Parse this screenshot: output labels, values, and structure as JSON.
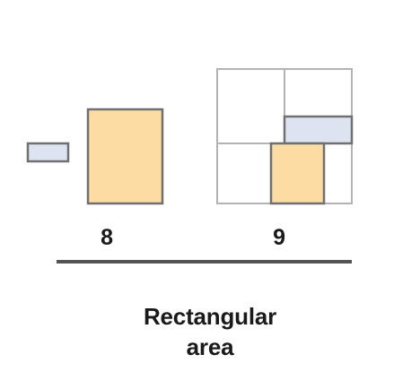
{
  "figures": [
    {
      "number": "8"
    },
    {
      "number": "9"
    }
  ],
  "caption": {
    "line1": "Rectangular",
    "line2": "area"
  },
  "colors": {
    "orange_fill": "#fddca3",
    "blue_fill": "#dde3f0",
    "shape_stroke": "#707070",
    "grid_stroke": "#b3b3b3",
    "divider": "#555555"
  }
}
